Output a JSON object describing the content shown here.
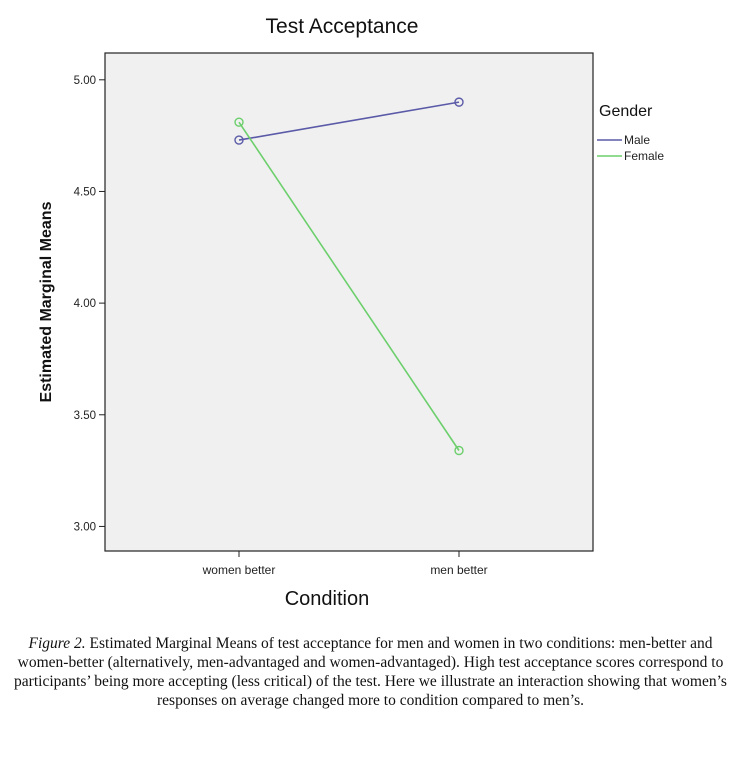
{
  "chart_data": {
    "type": "line",
    "title": "Test Acceptance",
    "xlabel": "Condition",
    "ylabel": "Estimated Marginal Means",
    "categories": [
      "women better",
      "men better"
    ],
    "ylim": [
      2.89,
      5.12
    ],
    "yticks": [
      "3.00",
      "3.50",
      "4.00",
      "4.50",
      "5.00"
    ],
    "grid": false,
    "legend_title": "Gender",
    "legend_position": "right",
    "series": [
      {
        "name": "Male",
        "color": "#5a5aa8",
        "values": [
          4.73,
          4.9
        ]
      },
      {
        "name": "Female",
        "color": "#6ccf6c",
        "values": [
          4.81,
          3.34
        ]
      }
    ],
    "plot_background": "#f0f0f0"
  },
  "caption": {
    "label": "Figure 2.",
    "text": " Estimated Marginal Means of test acceptance for men and women in two conditions: men-better and women-better (alternatively, men-advantaged and women-advantaged). High test acceptance scores correspond to participants’ being more accepting (less critical) of the test. Here we illustrate an interaction showing that women’s responses on average changed more to condition compared to men’s."
  }
}
